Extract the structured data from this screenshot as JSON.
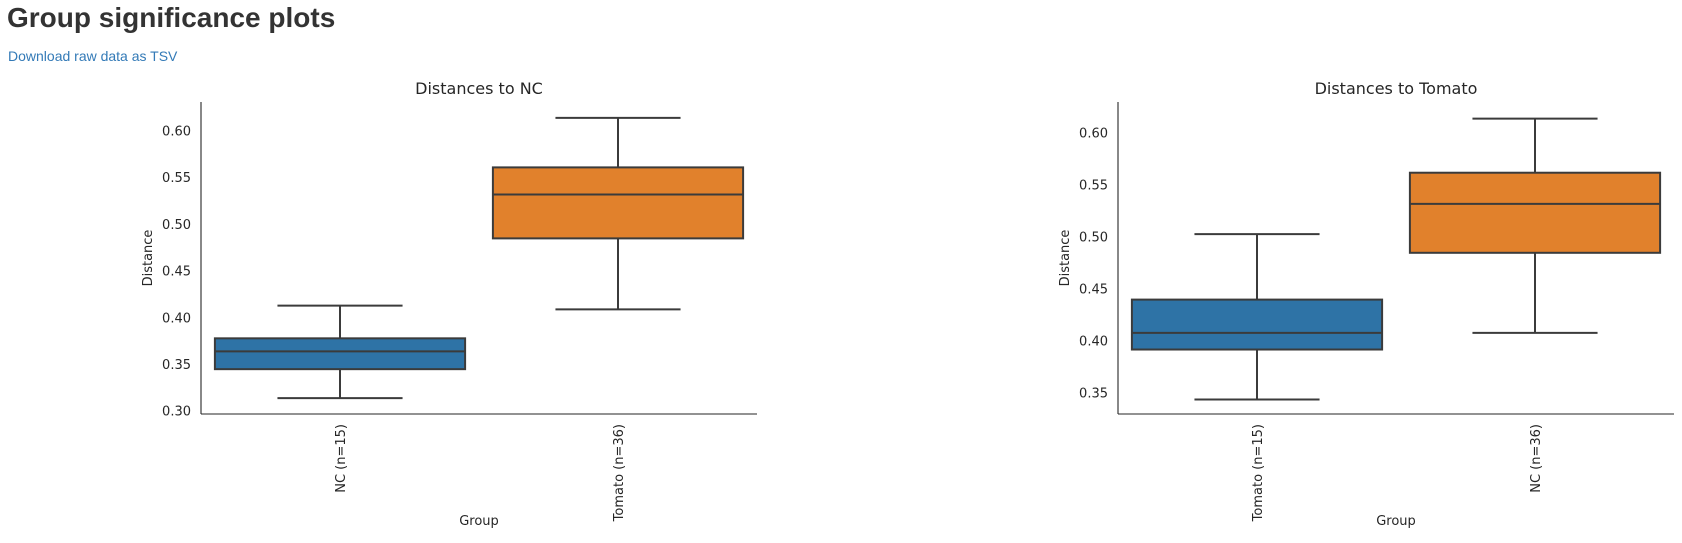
{
  "header": {
    "title": "Group significance plots",
    "download_label": "Download raw data as TSV"
  },
  "colors": {
    "blue": "#2e73a6",
    "orange": "#e1812c",
    "box_edge": "#3b3b3b",
    "link": "#337ab7",
    "title_text": "#333333"
  },
  "chart_data": [
    {
      "type": "box",
      "title": "Distances to NC",
      "xlabel": "Group",
      "ylabel": "Distance",
      "ylim": [
        0.297,
        0.631
      ],
      "yticks": [
        0.3,
        0.35,
        0.4,
        0.45,
        0.5,
        0.55,
        0.6
      ],
      "ytick_labels": [
        "0.30",
        "0.35",
        "0.40",
        "0.45",
        "0.50",
        "0.55",
        "0.60"
      ],
      "grid": false,
      "categories": [
        "NC (n=15)",
        "Tomato (n=36)"
      ],
      "boxes": [
        {
          "label": "NC (n=15)",
          "color": "blue",
          "whisker_low": 0.314,
          "q1": 0.345,
          "median": 0.364,
          "q3": 0.378,
          "whisker_high": 0.413
        },
        {
          "label": "Tomato (n=36)",
          "color": "orange",
          "whisker_low": 0.409,
          "q1": 0.485,
          "median": 0.532,
          "q3": 0.561,
          "whisker_high": 0.614
        }
      ]
    },
    {
      "type": "box",
      "title": "Distances to Tomato",
      "xlabel": "Group",
      "ylabel": "Distance",
      "ylim": [
        0.33,
        0.63
      ],
      "yticks": [
        0.35,
        0.4,
        0.45,
        0.5,
        0.55,
        0.6
      ],
      "ytick_labels": [
        "0.35",
        "0.40",
        "0.45",
        "0.50",
        "0.55",
        "0.60"
      ],
      "grid": false,
      "categories": [
        "Tomato (n=15)",
        "NC (n=36)"
      ],
      "boxes": [
        {
          "label": "Tomato (n=15)",
          "color": "blue",
          "whisker_low": 0.344,
          "q1": 0.392,
          "median": 0.408,
          "q3": 0.44,
          "whisker_high": 0.503
        },
        {
          "label": "NC (n=36)",
          "color": "orange",
          "whisker_low": 0.408,
          "q1": 0.485,
          "median": 0.532,
          "q3": 0.562,
          "whisker_high": 0.614
        }
      ]
    }
  ]
}
